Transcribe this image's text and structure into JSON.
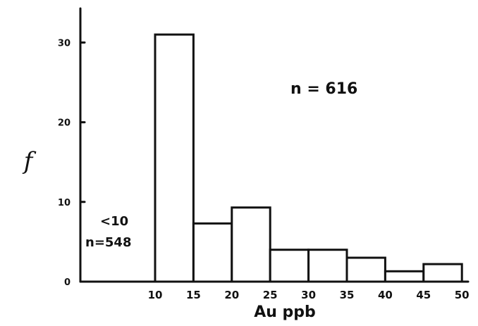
{
  "chart_data": {
    "type": "bar",
    "bins": [
      {
        "start": 10,
        "end": 15,
        "value": 31
      },
      {
        "start": 15,
        "end": 20,
        "value": 7.3
      },
      {
        "start": 20,
        "end": 25,
        "value": 9.3
      },
      {
        "start": 25,
        "end": 30,
        "value": 4
      },
      {
        "start": 30,
        "end": 35,
        "value": 4
      },
      {
        "start": 35,
        "end": 40,
        "value": 3
      },
      {
        "start": 40,
        "end": 45,
        "value": 1.3
      },
      {
        "start": 45,
        "end": 50,
        "value": 2.2
      }
    ],
    "x_ticks": [
      "10",
      "15",
      "20",
      "25",
      "30",
      "35",
      "40",
      "45",
      "50"
    ],
    "y_ticks": [
      "0",
      "10",
      "20",
      "30"
    ],
    "xlabel": "Au ppb",
    "ylabel": "f",
    "xlim": [
      0,
      50
    ],
    "ylim": [
      0,
      35
    ],
    "annotations": {
      "total": "n = 616",
      "below_line1": "<10",
      "below_line2": "n=548"
    }
  }
}
